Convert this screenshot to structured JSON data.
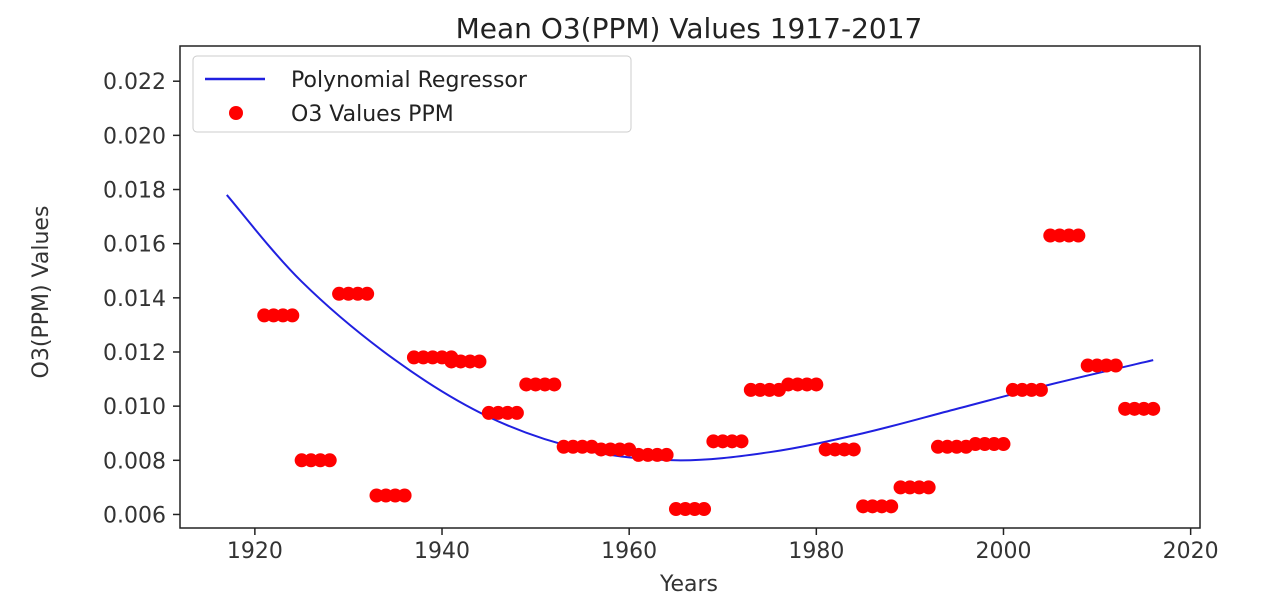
{
  "chart_data": {
    "type": "scatter",
    "title": "Mean O3(PPM) Values 1917-2017",
    "xlabel": "Years",
    "ylabel": "O3(PPM) Values",
    "xlim": [
      1912,
      2021
    ],
    "ylim": [
      0.0055,
      0.0233
    ],
    "xticks": [
      1920,
      1940,
      1960,
      1980,
      2000,
      2020
    ],
    "yticks": [
      0.006,
      0.008,
      0.01,
      0.012,
      0.014,
      0.016,
      0.018,
      0.02,
      0.022
    ],
    "ytick_labels": [
      "0.006",
      "0.008",
      "0.010",
      "0.012",
      "0.014",
      "0.016",
      "0.018",
      "0.020",
      "0.022"
    ],
    "legend_position": "upper left",
    "grid": false,
    "series": [
      {
        "name": "Polynomial Regressor",
        "kind": "line",
        "color": "#2020e0",
        "x": [
          1917,
          1925,
          1935,
          1945,
          1955,
          1965,
          1975,
          1985,
          1995,
          2005,
          2016
        ],
        "y": [
          0.0178,
          0.0146,
          0.0117,
          0.0096,
          0.0084,
          0.008,
          0.0083,
          0.009,
          0.0099,
          0.0108,
          0.0117
        ]
      },
      {
        "name": "O3 Values PPM",
        "kind": "scatter",
        "color": "#ff0000",
        "groups": [
          {
            "x": [
              1921,
              1922,
              1923,
              1924
            ],
            "y": 0.01335
          },
          {
            "x": [
              1925,
              1926,
              1927,
              1928
            ],
            "y": 0.008
          },
          {
            "x": [
              1929,
              1930,
              1931,
              1932
            ],
            "y": 0.01415
          },
          {
            "x": [
              1933,
              1934,
              1935,
              1936
            ],
            "y": 0.0067
          },
          {
            "x": [
              1937,
              1938,
              1939,
              1940,
              1941
            ],
            "y": 0.0118
          },
          {
            "x": [
              1941,
              1942,
              1943,
              1944
            ],
            "y": 0.01165
          },
          {
            "x": [
              1945,
              1946,
              1947,
              1948
            ],
            "y": 0.00975
          },
          {
            "x": [
              1949,
              1950,
              1951,
              1952
            ],
            "y": 0.0108
          },
          {
            "x": [
              1953,
              1954,
              1955,
              1956
            ],
            "y": 0.0085
          },
          {
            "x": [
              1957,
              1958,
              1959,
              1960
            ],
            "y": 0.0084
          },
          {
            "x": [
              1961,
              1962,
              1963,
              1964
            ],
            "y": 0.0082
          },
          {
            "x": [
              1965,
              1966,
              1967,
              1968
            ],
            "y": 0.0062
          },
          {
            "x": [
              1969,
              1970,
              1971,
              1972
            ],
            "y": 0.0087
          },
          {
            "x": [
              1973,
              1974,
              1975,
              1976
            ],
            "y": 0.0106
          },
          {
            "x": [
              1977,
              1978,
              1979,
              1980
            ],
            "y": 0.0108
          },
          {
            "x": [
              1981,
              1982,
              1983,
              1984
            ],
            "y": 0.0084
          },
          {
            "x": [
              1985,
              1986,
              1987,
              1988
            ],
            "y": 0.0063
          },
          {
            "x": [
              1989,
              1990,
              1991,
              1992
            ],
            "y": 0.007
          },
          {
            "x": [
              1993,
              1994,
              1995,
              1996
            ],
            "y": 0.0085
          },
          {
            "x": [
              1997,
              1998,
              1999,
              2000
            ],
            "y": 0.0086
          },
          {
            "x": [
              2001,
              2002,
              2003,
              2004
            ],
            "y": 0.0106
          },
          {
            "x": [
              2005,
              2006,
              2007,
              2008
            ],
            "y": 0.0163
          },
          {
            "x": [
              2009,
              2010,
              2011,
              2012
            ],
            "y": 0.0115
          },
          {
            "x": [
              2013,
              2014,
              2015,
              2016
            ],
            "y": 0.0099
          }
        ]
      }
    ]
  }
}
